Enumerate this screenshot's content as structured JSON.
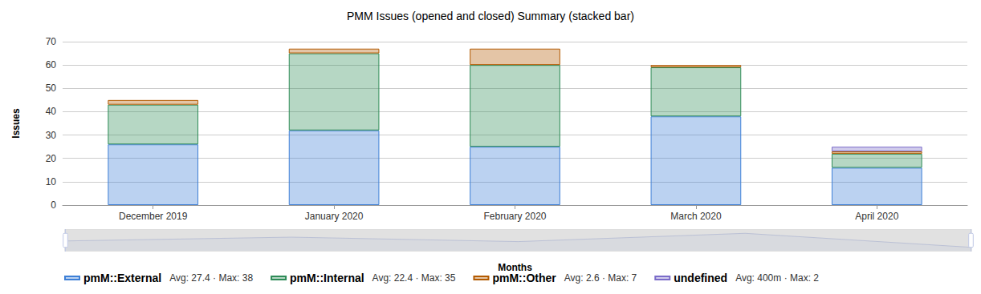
{
  "chart_data": {
    "type": "bar",
    "title": "PMM Issues (opened and closed) Summary (stacked bar)",
    "x_label": "Months",
    "y_label": "Issues",
    "categories": [
      "December 2019",
      "January 2020",
      "February 2020",
      "March 2020",
      "April 2020"
    ],
    "series": [
      {
        "name": "pmM::External",
        "color": "#3d7fd6",
        "values": [
          26,
          32,
          25,
          38,
          16
        ],
        "summary": "Avg: 27.4 · Max: 38"
      },
      {
        "name": "pmM::Internal",
        "color": "#2e8b57",
        "values": [
          17,
          33,
          35,
          21,
          6
        ],
        "summary": "Avg: 22.4 · Max: 35"
      },
      {
        "name": "pmM::Other",
        "color": "#b35a00",
        "values": [
          2,
          2,
          7,
          1,
          1
        ],
        "summary": "Avg: 2.6 · Max: 7"
      },
      {
        "name": "undefined",
        "color": "#7b6cc9",
        "values": [
          0,
          0,
          0,
          0,
          2
        ],
        "summary": "Avg: 400m · Max: 2"
      }
    ],
    "ylim": [
      0,
      70
    ],
    "yticks": [
      0,
      10,
      20,
      30,
      40,
      50,
      60,
      70
    ],
    "stacked": true,
    "grid": true,
    "legend": "bottom"
  }
}
